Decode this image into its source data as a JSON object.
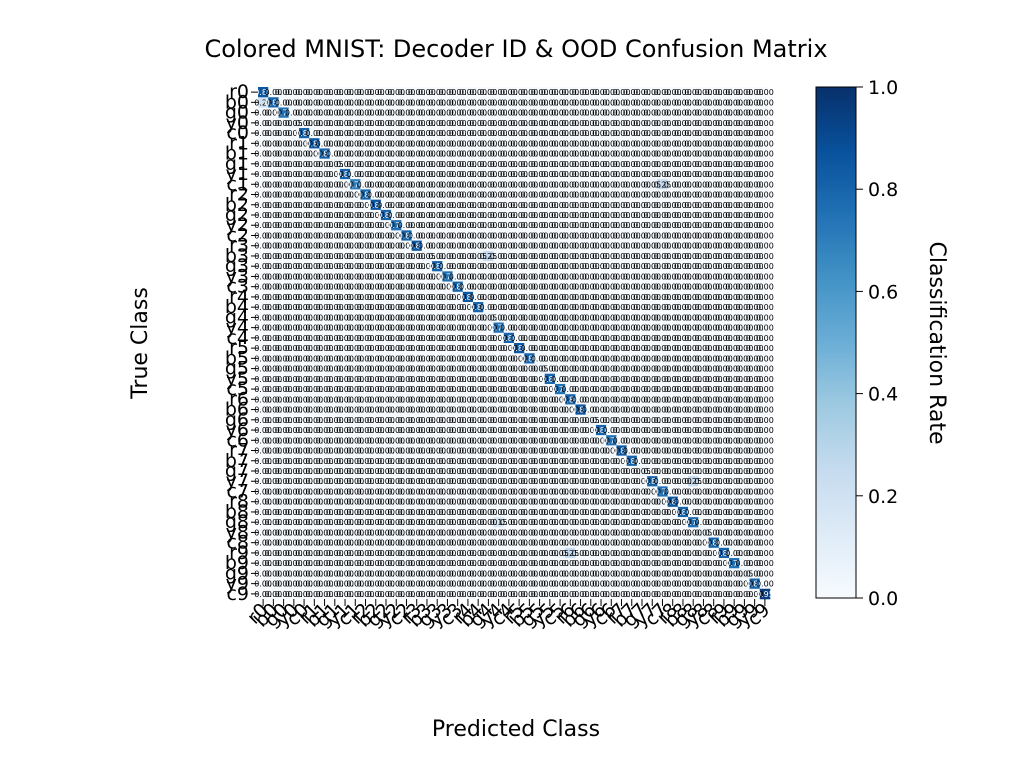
{
  "chart_data": {
    "type": "heatmap",
    "title": "Colored MNIST: Decoder ID & OOD Confusion Matrix",
    "xlabel": "Predicted Class",
    "ylabel": "True Class",
    "colorbar_label": "Classification Rate",
    "colormap": "Blues",
    "vmin": 0.0,
    "vmax": 1.0,
    "colorbar_ticks": [
      "0.0",
      "0.2",
      "0.4",
      "0.6",
      "0.8",
      "1.0"
    ],
    "colorbar_stops": [
      "#f7fbff",
      "#deebf7",
      "#c6dbef",
      "#9ecae1",
      "#6baed6",
      "#4292c6",
      "#2171b5",
      "#08519c",
      "#08306b"
    ],
    "classes": [
      "r0",
      "b0",
      "g0",
      "y0",
      "c0",
      "r1",
      "b1",
      "g1",
      "y1",
      "c1",
      "r2",
      "b2",
      "g2",
      "y2",
      "c2",
      "r3",
      "b3",
      "g3",
      "y3",
      "c3",
      "r4",
      "b4",
      "g4",
      "y4",
      "c4",
      "r5",
      "b5",
      "g5",
      "y5",
      "c5",
      "r6",
      "b6",
      "g6",
      "y6",
      "c6",
      "r7",
      "b7",
      "g7",
      "y7",
      "c7",
      "r8",
      "b8",
      "g8",
      "y8",
      "c8",
      "r9",
      "b9",
      "g9",
      "y9",
      "c9"
    ],
    "diagonal_values": [
      0.85,
      0.8,
      0.75,
      0.05,
      0.8,
      0.85,
      0.8,
      0.05,
      0.8,
      0.7,
      0.8,
      0.85,
      0.8,
      0.75,
      0.8,
      0.85,
      0.05,
      0.8,
      0.75,
      0.8,
      0.85,
      0.8,
      0.05,
      0.75,
      0.8,
      0.85,
      0.8,
      0.05,
      0.8,
      0.75,
      0.8,
      0.85,
      0.05,
      0.8,
      0.75,
      0.85,
      0.8,
      0.05,
      0.8,
      0.75,
      0.85,
      0.8,
      0.75,
      0.05,
      0.8,
      0.8,
      0.75,
      0.05,
      0.8,
      0.95
    ],
    "off_diagonal": [
      {
        "row": 1,
        "col": 0,
        "value": 0.2
      },
      {
        "row": 9,
        "col": 39,
        "value": 0.25
      },
      {
        "row": 9,
        "col": 38,
        "value": 0.05
      },
      {
        "row": 16,
        "col": 22,
        "value": 0.25
      },
      {
        "row": 16,
        "col": 21,
        "value": 0.05
      },
      {
        "row": 38,
        "col": 42,
        "value": 0.25
      },
      {
        "row": 42,
        "col": 23,
        "value": 0.15
      },
      {
        "row": 45,
        "col": 30,
        "value": 0.25
      },
      {
        "row": 45,
        "col": 29,
        "value": 0.05
      }
    ],
    "default_cell_label": "0.00",
    "grid": false,
    "legend": "none"
  }
}
